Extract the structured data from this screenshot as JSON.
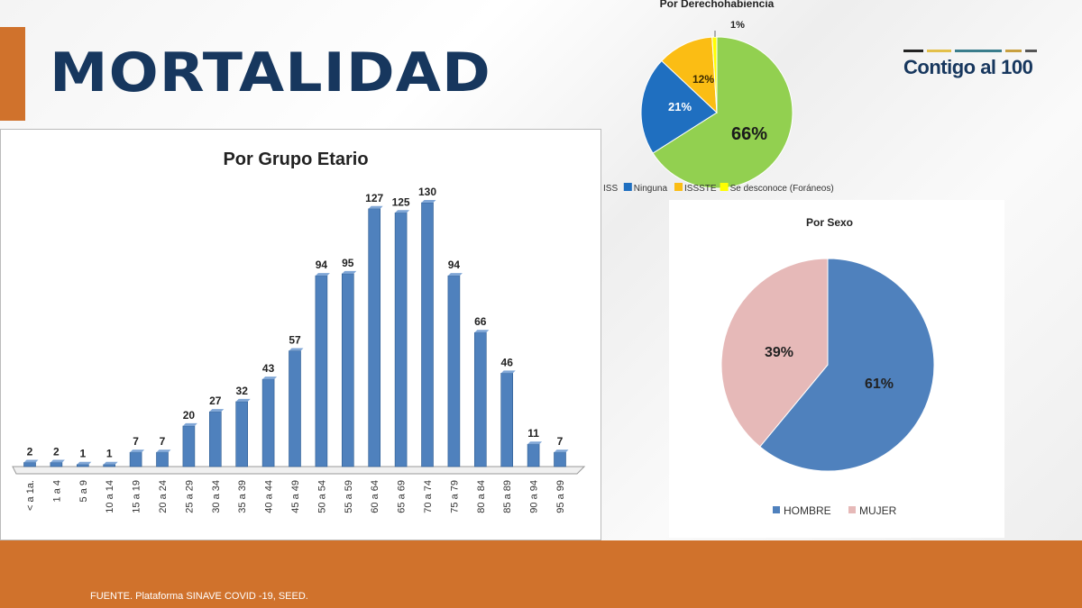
{
  "title": "MORTALIDAD",
  "logo": "Contigo al 100",
  "footer": "FUENTE. Plataforma SINAVE COVID -19, SEED.",
  "chart_data": [
    {
      "type": "bar",
      "title": "Por Grupo Etario",
      "categories": [
        "< a 1a.",
        "1 a 4",
        "5 a 9",
        "10 a 14",
        "15 a 19",
        "20 a 24",
        "25 a 29",
        "30 a 34",
        "35 a 39",
        "40 a 44",
        "45 a 49",
        "50 a 54",
        "55 a 59",
        "60 a 64",
        "65 a 69",
        "70 a 74",
        "75 a 79",
        "80 a 84",
        "85 a 89",
        "90 a 94",
        "95 a 99"
      ],
      "values": [
        2,
        2,
        1,
        1,
        7,
        7,
        20,
        27,
        32,
        43,
        57,
        94,
        95,
        127,
        125,
        130,
        94,
        66,
        46,
        11,
        7
      ],
      "color": "#4f81bd",
      "ylim": [
        0,
        130
      ]
    },
    {
      "type": "pie",
      "title": "Por Derechohabiencia",
      "slices": [
        {
          "label": "ISS",
          "value": 66,
          "display": "66%",
          "color": "#92d050"
        },
        {
          "label": "Ninguna",
          "value": 21,
          "display": "21%",
          "color": "#1f6fc0"
        },
        {
          "label": "ISSSTE",
          "value": 12,
          "display": "12%",
          "color": "#fbbd14"
        },
        {
          "label": "Se desconoce (Foráneos)",
          "value": 1,
          "display": "1%",
          "color": "#ffff00"
        }
      ]
    },
    {
      "type": "pie",
      "title": "Por Sexo",
      "slices": [
        {
          "label": "HOMBRE",
          "value": 61,
          "display": "61%",
          "color": "#4f81bd"
        },
        {
          "label": "MUJER",
          "value": 39,
          "display": "39%",
          "color": "#e6b9b8"
        }
      ]
    }
  ]
}
